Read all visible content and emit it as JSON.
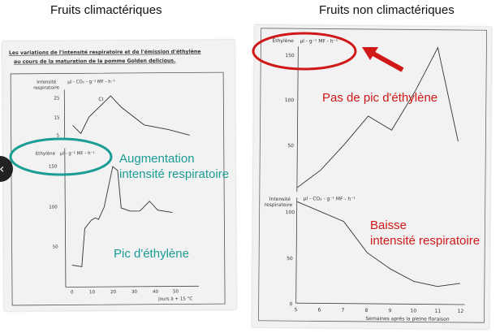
{
  "headings": {
    "left": "Fruits climactériques",
    "right": "Fruits non climactériques"
  },
  "left_panel": {
    "title_line1": "Les variations de l'intensité respiratoire et de l'émission d'éthylène",
    "title_line2": "au cours de la maturation de la pomme Golden delicious.",
    "top_ylabel_1": "Intensité",
    "top_ylabel_2": "respiratoire",
    "top_unit": "µl - CO₂ - g⁻¹ MF - h⁻¹",
    "bottom_ylabel": "Ethylène",
    "bottom_unit": "µl - g⁻¹ MF - h⁻¹",
    "curve_label": "CI",
    "xlabel": "Jours à + 15 °C",
    "top_ticks": [
      "25",
      "15",
      "5"
    ],
    "bottom_ticks": [
      "150",
      "100",
      "50"
    ],
    "x_ticks": [
      "0",
      "10",
      "20",
      "30",
      "40",
      "50"
    ]
  },
  "right_panel": {
    "top_ylabel": "Éthylène",
    "top_unit": "µl - g⁻¹ MF - h⁻¹",
    "bottom_ylabel_1": "Intensité",
    "bottom_ylabel_2": "respiratoire",
    "bottom_unit": "µl - CO₂ - g⁻¹ MF - h⁻¹",
    "top_ticks": [
      "150",
      "100",
      "50"
    ],
    "bottom_ticks": [
      "100",
      "50",
      "0"
    ],
    "x_ticks": [
      "5",
      "6",
      "7",
      "8",
      "9",
      "10",
      "11",
      "12"
    ],
    "xlabel": "Semaines après la pleine floraison"
  },
  "annotations": {
    "teal_line1": "Augmentation",
    "teal_line2": "intensité respiratoire",
    "pic": "Pic d'éthylène",
    "pas_de_pic": "Pas de pic d'éthylène",
    "baisse_line1": "Baisse",
    "baisse_line2": "intensité respiratoire"
  },
  "colors": {
    "teal": "#1b9c95",
    "red": "#d01818"
  },
  "chart_data": [
    {
      "type": "line",
      "xlabel": "Jours à + 15 °C",
      "series": [
        {
          "name": "Intensité respiratoire",
          "x": [
            3,
            8,
            13,
            20,
            25,
            35,
            45,
            53
          ],
          "y": [
            7,
            6,
            10,
            26,
            20,
            15,
            12,
            10
          ]
        },
        {
          "name": "Ethylène",
          "x": [
            0,
            5,
            7,
            10,
            12,
            14,
            17,
            20,
            22,
            25,
            30,
            40,
            45,
            50
          ],
          "y": [
            22,
            23,
            72,
            80,
            100,
            82,
            92,
            140,
            100,
            92,
            90,
            98,
            92,
            90
          ]
        }
      ]
    },
    {
      "type": "line",
      "xlabel": "Semaines après la pleine floraison",
      "series": [
        {
          "name": "Éthylène",
          "x": [
            5,
            6,
            7,
            8,
            9,
            10,
            11,
            12
          ],
          "y": [
            10,
            25,
            55,
            80,
            65,
            110,
            160,
            55
          ]
        },
        {
          "name": "Intensité respiratoire",
          "x": [
            5,
            6,
            7,
            8,
            9,
            10,
            11,
            12
          ],
          "y": [
            110,
            100,
            88,
            55,
            38,
            25,
            20,
            23
          ]
        }
      ]
    }
  ]
}
